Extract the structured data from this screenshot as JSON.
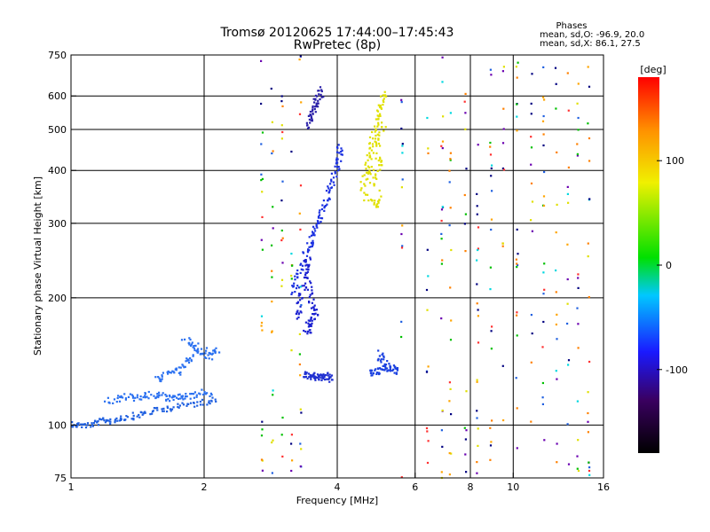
{
  "chart_data": {
    "type": "scatter",
    "title": "Tromsø 20120625 17:44:00–17:45:43",
    "subtitle": "RwPretec (8p)",
    "xlabel": "Frequency [MHz]",
    "ylabel": "Stationary phase Virtual Height [km]",
    "xscale": "log",
    "yscale": "log",
    "xlim": [
      1,
      16
    ],
    "ylim": [
      75,
      750
    ],
    "x_ticks": [
      1,
      2,
      4,
      6,
      8,
      10,
      16
    ],
    "y_ticks": [
      75,
      100,
      200,
      300,
      400,
      500,
      600,
      750
    ],
    "grid": true,
    "phase_stats": {
      "heading": "Phases",
      "o_line": "mean, sd,O:  -96.9, 20.0",
      "x_line": "mean, sd,X:  86.1, 27.5"
    },
    "colorbar": {
      "label": "[deg]",
      "range": [
        -180,
        180
      ],
      "ticks": [
        100,
        0,
        -100
      ],
      "colors": [
        "#000000",
        "#3a0060",
        "#1a1aff",
        "#00c8ff",
        "#00e000",
        "#f0f000",
        "#ff9000",
        "#ff0000"
      ]
    },
    "traces": [
      {
        "name": "",
        "color": "#2060e0",
        "points": [
          [
            1.0,
            101
          ],
          [
            1.03,
            100
          ],
          [
            1.06,
            100
          ],
          [
            1.1,
            100
          ],
          [
            1.13,
            101
          ],
          [
            1.17,
            102
          ],
          [
            1.2,
            103
          ],
          [
            1.24,
            102
          ],
          [
            1.28,
            104
          ],
          [
            1.33,
            104
          ],
          [
            1.38,
            105
          ],
          [
            1.43,
            106
          ],
          [
            1.49,
            107
          ],
          [
            1.55,
            108
          ],
          [
            1.62,
            109
          ],
          [
            1.69,
            110
          ],
          [
            1.77,
            111
          ],
          [
            1.86,
            112
          ],
          [
            1.95,
            113
          ],
          [
            2.05,
            114
          ],
          [
            2.12,
            115
          ]
        ]
      },
      {
        "name": "",
        "color": "#2a70f0",
        "points": [
          [
            1.2,
            115
          ],
          [
            1.25,
            114
          ],
          [
            1.3,
            116
          ],
          [
            1.35,
            117
          ],
          [
            1.4,
            116
          ],
          [
            1.45,
            117
          ],
          [
            1.5,
            118
          ],
          [
            1.55,
            117
          ],
          [
            1.6,
            118
          ],
          [
            1.65,
            116
          ],
          [
            1.7,
            115
          ],
          [
            1.75,
            117
          ],
          [
            1.8,
            116
          ],
          [
            1.85,
            117
          ],
          [
            1.92,
            118
          ],
          [
            2.0,
            120
          ],
          [
            2.08,
            118
          ]
        ]
      },
      {
        "name": "",
        "color": "#2a70f0",
        "points": [
          [
            1.55,
            130
          ],
          [
            1.6,
            128
          ],
          [
            1.65,
            132
          ],
          [
            1.7,
            135
          ],
          [
            1.75,
            133
          ],
          [
            1.8,
            138
          ],
          [
            1.85,
            142
          ],
          [
            1.9,
            147
          ],
          [
            1.95,
            150
          ],
          [
            2.0,
            148
          ],
          [
            2.05,
            145
          ],
          [
            2.1,
            148
          ],
          [
            2.14,
            150
          ],
          [
            1.8,
            160
          ],
          [
            1.85,
            156
          ],
          [
            1.9,
            152
          ]
        ]
      },
      {
        "name": "",
        "color": "#1a30e0",
        "points": [
          [
            3.15,
            205
          ],
          [
            3.2,
            215
          ],
          [
            3.25,
            225
          ],
          [
            3.3,
            235
          ],
          [
            3.35,
            245
          ],
          [
            3.4,
            255
          ],
          [
            3.45,
            265
          ],
          [
            3.5,
            275
          ],
          [
            3.55,
            285
          ],
          [
            3.6,
            295
          ],
          [
            3.65,
            305
          ],
          [
            3.7,
            318
          ],
          [
            3.75,
            330
          ],
          [
            3.8,
            342
          ],
          [
            3.85,
            356
          ],
          [
            3.9,
            372
          ],
          [
            3.95,
            390
          ],
          [
            4.0,
            408
          ],
          [
            4.02,
            425
          ],
          [
            4.05,
            440
          ],
          [
            4.03,
            460
          ]
        ]
      },
      {
        "name": "",
        "color": "#1a20d0",
        "points": [
          [
            3.25,
            180
          ],
          [
            3.28,
            185
          ],
          [
            3.3,
            195
          ],
          [
            3.32,
            205
          ],
          [
            3.35,
            215
          ],
          [
            3.38,
            225
          ],
          [
            3.4,
            240
          ],
          [
            3.42,
            250
          ],
          [
            3.45,
            230
          ],
          [
            3.48,
            210
          ],
          [
            3.5,
            198
          ],
          [
            3.52,
            190
          ],
          [
            3.55,
            186
          ],
          [
            3.58,
            182
          ],
          [
            3.4,
            170
          ],
          [
            3.45,
            165
          ],
          [
            3.5,
            175
          ],
          [
            3.55,
            178
          ]
        ]
      },
      {
        "name": "",
        "color": "#2030d0",
        "points": [
          [
            3.35,
            132
          ],
          [
            3.4,
            131
          ],
          [
            3.45,
            130
          ],
          [
            3.5,
            131
          ],
          [
            3.55,
            130
          ],
          [
            3.6,
            129
          ],
          [
            3.65,
            131
          ],
          [
            3.7,
            130
          ],
          [
            3.75,
            129
          ],
          [
            3.8,
            131
          ],
          [
            3.85,
            130
          ],
          [
            3.9,
            128
          ]
        ]
      },
      {
        "name": "",
        "color": "#2a20a8",
        "points": [
          [
            3.4,
            500
          ],
          [
            3.45,
            520
          ],
          [
            3.5,
            545
          ],
          [
            3.55,
            565
          ],
          [
            3.6,
            585
          ],
          [
            3.65,
            605
          ],
          [
            3.7,
            620
          ],
          [
            3.5,
            530
          ],
          [
            3.6,
            575
          ]
        ]
      },
      {
        "name": "",
        "color": "#e0e000",
        "points": [
          [
            4.55,
            360
          ],
          [
            4.6,
            380
          ],
          [
            4.65,
            400
          ],
          [
            4.7,
            420
          ],
          [
            4.75,
            445
          ],
          [
            4.8,
            470
          ],
          [
            4.85,
            495
          ],
          [
            4.9,
            520
          ],
          [
            4.95,
            545
          ],
          [
            5.0,
            565
          ],
          [
            5.05,
            590
          ],
          [
            5.1,
            610
          ],
          [
            4.7,
            350
          ],
          [
            4.8,
            335
          ],
          [
            4.9,
            330
          ],
          [
            5.0,
            345
          ],
          [
            4.85,
            380
          ],
          [
            4.95,
            400
          ],
          [
            5.05,
            430
          ],
          [
            4.75,
            390
          ],
          [
            4.9,
            460
          ],
          [
            5.0,
            480
          ],
          [
            5.1,
            510
          ],
          [
            4.6,
            340
          ]
        ]
      },
      {
        "name": "",
        "color": "#1a40e0",
        "points": [
          [
            4.75,
            132
          ],
          [
            4.8,
            133
          ],
          [
            4.9,
            134
          ],
          [
            5.0,
            135
          ],
          [
            5.1,
            136
          ],
          [
            5.2,
            137
          ],
          [
            5.3,
            136
          ],
          [
            5.4,
            135
          ],
          [
            5.5,
            134
          ],
          [
            5.0,
            145
          ],
          [
            5.1,
            140
          ],
          [
            4.95,
            150
          ]
        ]
      }
    ],
    "scatter_noise_colors": [
      "#ffa500",
      "#ff3030",
      "#00c000",
      "#00d8e0",
      "#e0e000",
      "#2060e0",
      "#6a00b0",
      "#000080",
      "#ff8000"
    ],
    "scatter_columns": [
      2.7,
      2.85,
      3.0,
      3.15,
      3.3,
      5.6,
      6.4,
      6.9,
      7.2,
      7.8,
      8.3,
      8.9,
      9.5,
      10.2,
      11.0,
      11.7,
      12.5,
      13.3,
      14.0,
      14.8
    ]
  }
}
